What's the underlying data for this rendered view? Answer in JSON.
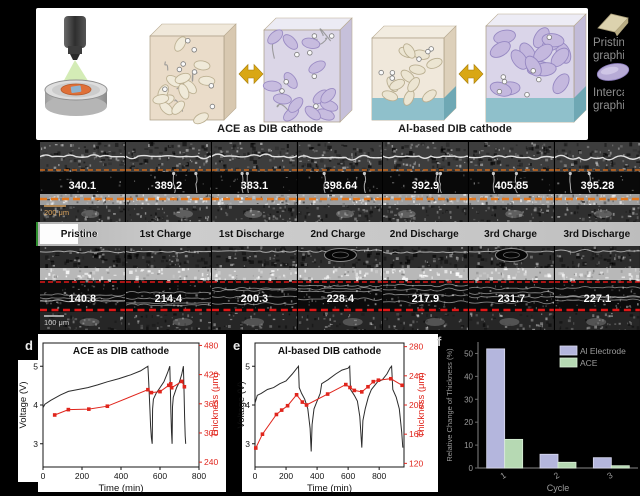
{
  "panel_a": {
    "caption_ace": "ACE as DIB cathode",
    "caption_al": "Al-based DIB cathode",
    "legend_pristine_l1": "Pristine",
    "legend_pristine_l2": "graphite",
    "legend_intercalated_l1": "Intercalated",
    "legend_intercalated_l2": "graphite"
  },
  "sem": {
    "stage_labels": [
      "Pristine",
      "1st Charge",
      "1st Discharge",
      "2nd Charge",
      "2nd Discharge",
      "3rd Charge",
      "3rd Discharge"
    ],
    "row_b": {
      "values": [
        "340.1",
        "389.2",
        "383.1",
        "398.64",
        "392.9",
        "405.85",
        "395.28"
      ],
      "scale_bar": "200 μm",
      "line_color": "#d96f1c"
    },
    "row_c": {
      "values": [
        "140.8",
        "214.4",
        "200.3",
        "228.4",
        "217.9",
        "231.7",
        "227.1"
      ],
      "scale_bar": "100 μm",
      "line_color": "#e21717"
    }
  },
  "panel_labels": {
    "d": "d",
    "e": "e",
    "f": "f"
  },
  "chart_data": [
    {
      "id": "chart-d",
      "type": "line",
      "title": "ACE as DIB cathode",
      "xlabel": "Time (min)",
      "ylabel_left": "Voltage (V)",
      "ylabel_right": "Thickness (μm)",
      "xlim": [
        0,
        800
      ],
      "xticks": [
        0,
        200,
        400,
        600,
        800
      ],
      "ylim_left": [
        2.4,
        5.6
      ],
      "yticks_left": [
        3,
        4,
        5
      ],
      "ylim_right": [
        230,
        485
      ],
      "yticks_right": [
        240,
        300,
        360,
        420,
        480
      ],
      "legend_position": "none",
      "grid": false,
      "series": [
        {
          "name": "Voltage",
          "axis": "left",
          "color": "#2b2b2b",
          "marker": false,
          "points": [
            [
              0,
              3.93
            ],
            [
              10,
              4.02
            ],
            [
              40,
              4.12
            ],
            [
              90,
              4.26
            ],
            [
              130,
              4.35
            ],
            [
              180,
              4.4
            ],
            [
              230,
              4.45
            ],
            [
              280,
              4.52
            ],
            [
              330,
              4.6
            ],
            [
              390,
              4.68
            ],
            [
              450,
              4.78
            ],
            [
              500,
              4.88
            ],
            [
              538,
              5.0
            ],
            [
              542,
              4.6
            ],
            [
              548,
              3.9
            ],
            [
              552,
              3.45
            ],
            [
              556,
              3.15
            ],
            [
              560,
              3.0
            ],
            [
              562,
              3.9
            ],
            [
              566,
              4.15
            ],
            [
              580,
              4.3
            ],
            [
              600,
              4.45
            ],
            [
              620,
              4.6
            ],
            [
              640,
              4.85
            ],
            [
              650,
              5.0
            ],
            [
              653,
              4.5
            ],
            [
              656,
              3.8
            ],
            [
              659,
              3.3
            ],
            [
              662,
              3.0
            ],
            [
              664,
              3.95
            ],
            [
              668,
              4.2
            ],
            [
              685,
              4.45
            ],
            [
              700,
              4.6
            ],
            [
              712,
              4.8
            ],
            [
              720,
              5.0
            ],
            [
              723,
              4.4
            ],
            [
              726,
              3.7
            ],
            [
              729,
              3.2
            ],
            [
              732,
              3.0
            ]
          ]
        },
        {
          "name": "Thickness",
          "axis": "right",
          "color": "#e0251c",
          "marker": true,
          "points": [
            [
              60,
              337
            ],
            [
              130,
              348
            ],
            [
              235,
              349
            ],
            [
              330,
              355
            ],
            [
              538,
              389
            ],
            [
              556,
              383
            ],
            [
              600,
              385
            ],
            [
              645,
              398
            ],
            [
              655,
              401
            ],
            [
              660,
              393
            ],
            [
              712,
              406
            ],
            [
              725,
              395
            ]
          ]
        }
      ]
    },
    {
      "id": "chart-e",
      "type": "line",
      "title": "Al-based DIB cathode",
      "xlabel": "Time (min)",
      "ylabel_left": "Voltage (V)",
      "ylabel_right": "Thickness (μm)",
      "xlim": [
        0,
        960
      ],
      "xticks": [
        0,
        200,
        400,
        600,
        800
      ],
      "ylim_left": [
        2.4,
        5.6
      ],
      "yticks_left": [
        3,
        4,
        5
      ],
      "ylim_right": [
        115,
        285
      ],
      "yticks_right": [
        120,
        160,
        200,
        240,
        280
      ],
      "legend_position": "none",
      "grid": false,
      "series": [
        {
          "name": "Voltage",
          "axis": "left",
          "color": "#2b2b2b",
          "marker": false,
          "points": [
            [
              0,
              4.05
            ],
            [
              15,
              4.25
            ],
            [
              40,
              4.3
            ],
            [
              80,
              4.4
            ],
            [
              120,
              4.45
            ],
            [
              160,
              4.55
            ],
            [
              200,
              4.62
            ],
            [
              240,
              4.8
            ],
            [
              270,
              4.95
            ],
            [
              280,
              5.0
            ],
            [
              285,
              4.45
            ],
            [
              300,
              4.3
            ],
            [
              320,
              4.15
            ],
            [
              340,
              3.9
            ],
            [
              355,
              3.4
            ],
            [
              362,
              2.8
            ],
            [
              368,
              3.5
            ],
            [
              380,
              3.9
            ],
            [
              400,
              4.1
            ],
            [
              420,
              4.3
            ],
            [
              430,
              4.55
            ],
            [
              470,
              4.65
            ],
            [
              520,
              4.8
            ],
            [
              560,
              4.9
            ],
            [
              600,
              4.95
            ],
            [
              610,
              5.0
            ],
            [
              615,
              4.4
            ],
            [
              640,
              4.25
            ],
            [
              660,
              4.1
            ],
            [
              675,
              3.7
            ],
            [
              688,
              2.9
            ],
            [
              695,
              3.6
            ],
            [
              710,
              3.9
            ],
            [
              730,
              4.2
            ],
            [
              750,
              4.4
            ],
            [
              790,
              4.6
            ],
            [
              820,
              4.65
            ],
            [
              850,
              4.8
            ],
            [
              870,
              4.95
            ],
            [
              880,
              5.0
            ],
            [
              888,
              4.4
            ],
            [
              910,
              4.2
            ],
            [
              930,
              3.9
            ],
            [
              945,
              3.3
            ],
            [
              952,
              2.9
            ]
          ]
        },
        {
          "name": "Thickness",
          "axis": "right",
          "color": "#e0251c",
          "marker": true,
          "points": [
            [
              5,
              141
            ],
            [
              48,
              160
            ],
            [
              138,
              187
            ],
            [
              172,
              193
            ],
            [
              210,
              199
            ],
            [
              268,
              214
            ],
            [
              305,
              204
            ],
            [
              332,
              200
            ],
            [
              468,
              215
            ],
            [
              585,
              228
            ],
            [
              612,
              224
            ],
            [
              640,
              220
            ],
            [
              688,
              218
            ],
            [
              728,
              225
            ],
            [
              762,
              232
            ],
            [
              795,
              234
            ],
            [
              875,
              236
            ],
            [
              948,
              227
            ]
          ]
        }
      ]
    },
    {
      "id": "chart-f",
      "type": "bar",
      "title": "",
      "categories": [
        "1",
        "2",
        "3"
      ],
      "series": [
        {
          "name": "Al Electrode",
          "color": "#b4b6dd",
          "edge": "#dadbf0",
          "values": [
            52,
            6,
            4.5
          ]
        },
        {
          "name": "ACE",
          "color": "#b6d9b3",
          "edge": "#daeed7",
          "values": [
            12.5,
            2.5,
            1
          ]
        }
      ],
      "xlabel": "Cycle",
      "ylabel": "Relative Change of Thickness (%)",
      "ylim": [
        0,
        55
      ],
      "yticks": [
        0,
        10,
        20,
        30,
        40,
        50
      ],
      "legend_position": "upper-right",
      "grid": false,
      "text_color": "#9b9b9b",
      "axis_color": "#6e6e6e"
    }
  ]
}
